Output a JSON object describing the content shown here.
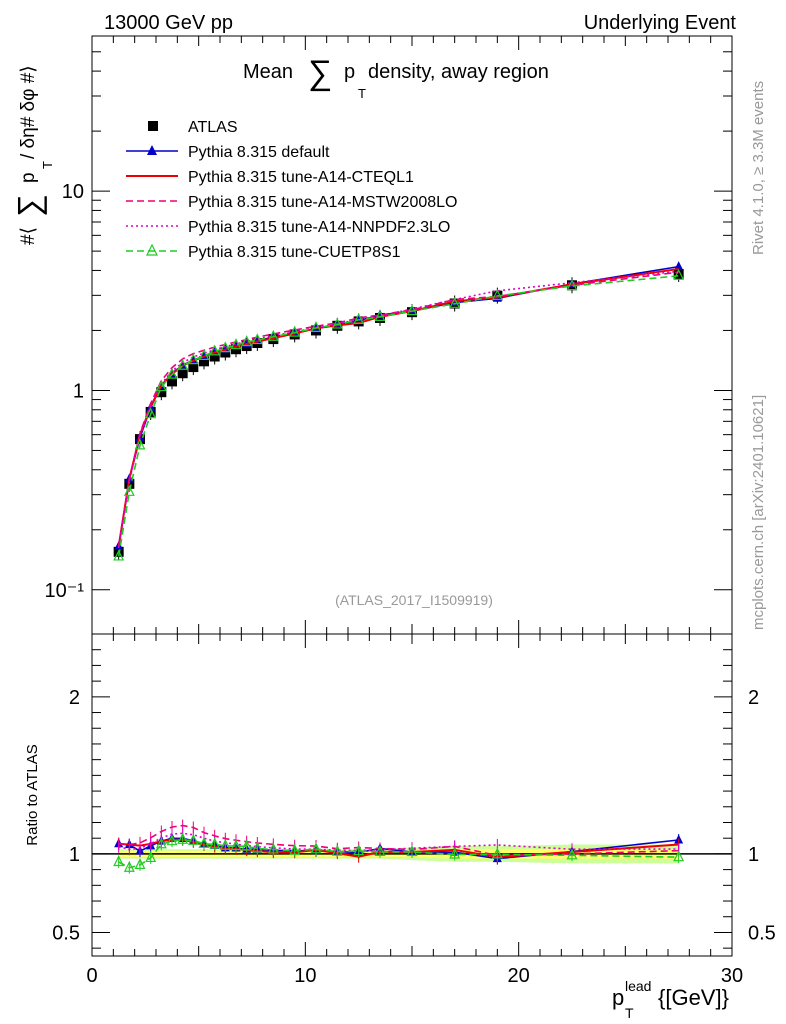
{
  "header": {
    "left": "13000 GeV pp",
    "right": "Underlying Event"
  },
  "title": {
    "prefix": "Mean ",
    "sigma": "∑",
    "p": "p",
    "sub": "T",
    "suffix": " density, away region"
  },
  "ylabel_main": {
    "a": "#⟨ ",
    "sigma": "∑",
    "p": "p",
    "sub": "T",
    "b": " / δη# δφ #⟩"
  },
  "ylabel_ratio": "Ratio to ATLAS",
  "xlabel": {
    "p": "p",
    "sub": "T",
    "sup": "lead",
    "rest": " {[GeV]}"
  },
  "analysis_tag": "(ATLAS_2017_I1509919)",
  "side_texts": {
    "rivet": "Rivet 4.1.0, ≥ 3.3M events",
    "site": "mcplots.cern.ch [arXiv:2401.10621]"
  },
  "colors": {
    "atlas": "#000000",
    "default": "#0000cc",
    "cteql1": "#ee0000",
    "mstw": "#ee0077",
    "nnpdf": "#dd00cc",
    "cuetp8s1": "#22cc22",
    "band_inner": "#ffff66",
    "band_outer": "#ccff99"
  },
  "chart_data": {
    "type": "line",
    "title": "Mean ∑ pT density, away region",
    "xlabel": "pT lead [GeV]",
    "ylabel": "#⟨ ∑ pT / δη# δφ #⟩",
    "xlim": [
      0,
      30
    ],
    "ylim": [
      0.06,
      60
    ],
    "yscale": "log",
    "ratio_ylim": [
      0.35,
      2.4
    ],
    "x_ticks": [
      "0",
      "10",
      "20",
      "30"
    ],
    "y_ticks": [
      "10⁻¹",
      "1",
      "10"
    ],
    "ratio_ticks": [
      "0.5",
      "1",
      "2"
    ],
    "x": [
      1.25,
      1.75,
      2.25,
      2.75,
      3.25,
      3.75,
      4.25,
      4.75,
      5.25,
      5.75,
      6.25,
      6.75,
      7.25,
      7.75,
      8.5,
      9.5,
      10.5,
      11.5,
      12.5,
      13.5,
      15.0,
      17.0,
      19.0,
      22.5,
      27.5
    ],
    "series": [
      {
        "name": "ATLAS",
        "style": "marker-square",
        "color": "atlas",
        "values": [
          0.155,
          0.34,
          0.57,
          0.78,
          0.98,
          1.11,
          1.22,
          1.31,
          1.4,
          1.48,
          1.55,
          1.61,
          1.67,
          1.73,
          1.81,
          1.91,
          2.0,
          2.11,
          2.22,
          2.31,
          2.47,
          2.73,
          2.99,
          3.37,
          3.84
        ]
      },
      {
        "name": "Pythia 8.315 default",
        "style": "solid-triangle",
        "color": "default",
        "values": [
          0.165,
          0.36,
          0.58,
          0.82,
          1.06,
          1.22,
          1.34,
          1.42,
          1.49,
          1.56,
          1.61,
          1.67,
          1.72,
          1.78,
          1.85,
          1.95,
          2.04,
          2.14,
          2.24,
          2.39,
          2.5,
          2.76,
          2.9,
          3.42,
          4.18
        ]
      },
      {
        "name": "Pythia 8.315 tune-A14-CTEQL1",
        "style": "solid",
        "color": "cteql1",
        "values": [
          0.165,
          0.36,
          0.6,
          0.83,
          1.06,
          1.21,
          1.33,
          1.41,
          1.48,
          1.55,
          1.6,
          1.66,
          1.71,
          1.76,
          1.83,
          1.93,
          2.05,
          2.12,
          2.18,
          2.34,
          2.5,
          2.8,
          2.93,
          3.41,
          4.07
        ]
      },
      {
        "name": "Pythia 8.315 tune-A14-MSTW2008LO",
        "style": "dashed",
        "color": "mstw",
        "values": [
          0.165,
          0.36,
          0.61,
          0.86,
          1.12,
          1.3,
          1.44,
          1.53,
          1.59,
          1.65,
          1.7,
          1.75,
          1.8,
          1.85,
          1.92,
          2.01,
          2.1,
          2.18,
          2.31,
          2.39,
          2.54,
          2.86,
          2.96,
          3.37,
          3.92
        ]
      },
      {
        "name": "Pythia 8.315 tune-A14-NNPDF2.3LO",
        "style": "dotted",
        "color": "nnpdf",
        "values": [
          0.162,
          0.35,
          0.59,
          0.83,
          1.08,
          1.25,
          1.38,
          1.47,
          1.54,
          1.6,
          1.66,
          1.71,
          1.76,
          1.81,
          1.88,
          1.97,
          2.06,
          2.16,
          2.27,
          2.37,
          2.56,
          2.86,
          3.16,
          3.47,
          3.96
        ]
      },
      {
        "name": "Pythia 8.315 tune-CUETP8S1",
        "style": "dashed-open-triangle",
        "color": "cuetp8s1",
        "values": [
          0.147,
          0.31,
          0.53,
          0.76,
          1.04,
          1.2,
          1.33,
          1.42,
          1.49,
          1.57,
          1.63,
          1.69,
          1.75,
          1.79,
          1.86,
          1.95,
          2.06,
          2.14,
          2.26,
          2.34,
          2.5,
          2.72,
          2.98,
          3.34,
          3.76
        ]
      }
    ],
    "ratio_band_inner": [
      0.02,
      0.02,
      0.02,
      0.02,
      0.02,
      0.02,
      0.02,
      0.02,
      0.02,
      0.02,
      0.02,
      0.02,
      0.02,
      0.02,
      0.02,
      0.02,
      0.02,
      0.02,
      0.02,
      0.02,
      0.02,
      0.03,
      0.03,
      0.03,
      0.03
    ],
    "ratio_band_outer": [
      0.03,
      0.03,
      0.03,
      0.03,
      0.03,
      0.03,
      0.03,
      0.03,
      0.03,
      0.03,
      0.03,
      0.03,
      0.03,
      0.03,
      0.03,
      0.03,
      0.03,
      0.03,
      0.03,
      0.03,
      0.04,
      0.05,
      0.05,
      0.06,
      0.06
    ]
  }
}
